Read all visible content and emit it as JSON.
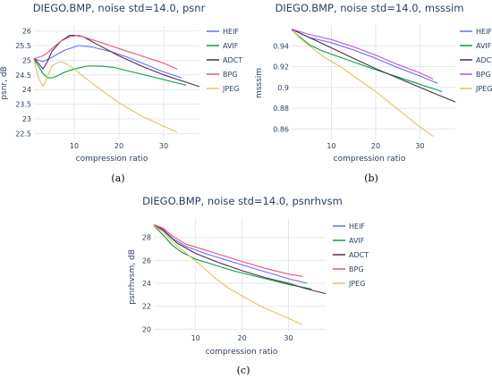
{
  "chart_data": [
    {
      "type": "line",
      "panel": "a",
      "caption": "(a)",
      "title": "DIEGO.BMP, noise std=14.0, psnr",
      "xlabel": "compression ratio",
      "ylabel": "psnr, dB",
      "xlim": [
        1,
        38
      ],
      "ylim": [
        22.3,
        26.2
      ],
      "xticks": [
        10,
        20,
        30
      ],
      "yticks": [
        22.5,
        23,
        23.5,
        24,
        24.5,
        25,
        25.5,
        26
      ],
      "grid": true,
      "legend": "right",
      "series": [
        {
          "name": "HEIF",
          "color": "#636efa",
          "x": [
            1,
            3,
            5,
            8,
            11,
            14,
            18,
            22,
            26,
            30,
            34
          ],
          "y": [
            25.05,
            24.95,
            25.1,
            25.35,
            25.5,
            25.45,
            25.3,
            25.1,
            24.85,
            24.6,
            24.4
          ]
        },
        {
          "name": "AVIF",
          "color": "#00a03c",
          "x": [
            1,
            2,
            3,
            4,
            5,
            6,
            8,
            10,
            13,
            16,
            19,
            23,
            27,
            31,
            35
          ],
          "y": [
            25.0,
            24.8,
            24.55,
            24.4,
            24.4,
            24.45,
            24.6,
            24.7,
            24.8,
            24.8,
            24.75,
            24.6,
            24.45,
            24.3,
            24.15
          ]
        },
        {
          "name": "ADCT",
          "color": "#4d2a4d",
          "x": [
            1,
            2,
            3,
            4,
            5,
            7,
            9,
            10,
            12,
            15,
            20,
            25,
            30,
            34,
            38
          ],
          "y": [
            25.05,
            24.9,
            24.7,
            24.95,
            25.3,
            25.65,
            25.85,
            25.85,
            25.8,
            25.55,
            25.15,
            24.8,
            24.5,
            24.3,
            24.1
          ]
        },
        {
          "name": "BPG",
          "color": "#e8517f",
          "x": [
            1,
            2,
            3,
            4,
            5,
            7,
            9,
            11,
            13,
            16,
            20,
            25,
            30,
            33
          ],
          "y": [
            25.05,
            25.1,
            25.15,
            25.25,
            25.4,
            25.65,
            25.8,
            25.85,
            25.75,
            25.6,
            25.4,
            25.15,
            24.9,
            24.7
          ]
        },
        {
          "name": "JPEG",
          "color": "#e5c35a",
          "x": [
            1,
            2,
            3,
            4,
            5,
            6,
            7,
            8,
            10,
            12,
            15,
            20,
            25,
            30,
            33
          ],
          "y": [
            25.0,
            24.4,
            24.1,
            24.45,
            24.8,
            24.9,
            24.95,
            24.9,
            24.7,
            24.45,
            24.1,
            23.55,
            23.1,
            22.75,
            22.55
          ]
        }
      ]
    },
    {
      "type": "line",
      "panel": "b",
      "caption": "(b)",
      "title": "DIEGO.BMP, noise std=14.0, msssim",
      "xlabel": "compression ratio",
      "ylabel": "msssim",
      "xlim": [
        1,
        38
      ],
      "ylim": [
        0.85,
        0.96
      ],
      "xticks": [
        10,
        20,
        30
      ],
      "yticks": [
        0.86,
        0.88,
        0.9,
        0.92,
        0.94
      ],
      "grid": true,
      "legend": "right",
      "series": [
        {
          "name": "HEIF",
          "color": "#636efa",
          "x": [
            1,
            5,
            10,
            15,
            20,
            25,
            30,
            34
          ],
          "y": [
            0.956,
            0.948,
            0.943,
            0.936,
            0.928,
            0.919,
            0.911,
            0.904
          ]
        },
        {
          "name": "AVIF",
          "color": "#00a03c",
          "x": [
            1,
            3,
            5,
            8,
            12,
            16,
            20,
            25,
            30,
            35
          ],
          "y": [
            0.955,
            0.948,
            0.941,
            0.935,
            0.929,
            0.923,
            0.917,
            0.91,
            0.903,
            0.896
          ]
        },
        {
          "name": "ADCT",
          "color": "#4d2a4d",
          "x": [
            1,
            4,
            8,
            12,
            16,
            20,
            25,
            30,
            34,
            38
          ],
          "y": [
            0.956,
            0.95,
            0.942,
            0.934,
            0.926,
            0.918,
            0.909,
            0.9,
            0.893,
            0.886
          ]
        },
        {
          "name": "BPG",
          "color": "#c054d3",
          "x": [
            1,
            5,
            10,
            15,
            20,
            25,
            30,
            33
          ],
          "y": [
            0.956,
            0.951,
            0.946,
            0.939,
            0.931,
            0.922,
            0.914,
            0.908
          ]
        },
        {
          "name": "JPEG",
          "color": "#e5c35a",
          "x": [
            1,
            3,
            5,
            8,
            12,
            16,
            20,
            25,
            30,
            33
          ],
          "y": [
            0.955,
            0.947,
            0.94,
            0.93,
            0.92,
            0.908,
            0.896,
            0.879,
            0.862,
            0.853
          ]
        }
      ]
    },
    {
      "type": "line",
      "panel": "c",
      "caption": "(c)",
      "title": "DIEGO.BMP, noise std=14.0, psnrhvsm",
      "xlabel": "compression ratio",
      "ylabel": "psnrhvsm, dB",
      "xlim": [
        1,
        38
      ],
      "ylim": [
        19.8,
        29.6
      ],
      "xticks": [
        10,
        20,
        30
      ],
      "yticks": [
        20,
        22,
        24,
        26,
        28
      ],
      "grid": true,
      "legend": "right",
      "series": [
        {
          "name": "HEIF",
          "color": "#636efa",
          "x": [
            1,
            3,
            5,
            8,
            12,
            16,
            20,
            25,
            30,
            34
          ],
          "y": [
            29.1,
            28.7,
            27.9,
            27.2,
            26.6,
            26.1,
            25.6,
            25.0,
            24.4,
            24.0
          ]
        },
        {
          "name": "AVIF",
          "color": "#00a03c",
          "x": [
            1,
            3,
            5,
            7,
            10,
            14,
            18,
            22,
            26,
            30,
            35
          ],
          "y": [
            29.0,
            28.2,
            27.3,
            26.7,
            26.1,
            25.6,
            25.1,
            24.7,
            24.3,
            23.9,
            23.5
          ]
        },
        {
          "name": "ADCT",
          "color": "#4d2a4d",
          "x": [
            1,
            3,
            6,
            10,
            15,
            20,
            25,
            30,
            34,
            38
          ],
          "y": [
            29.1,
            28.6,
            27.5,
            26.6,
            25.8,
            25.1,
            24.5,
            24.0,
            23.5,
            23.1
          ]
        },
        {
          "name": "BPG",
          "color": "#e8517f",
          "x": [
            1,
            3,
            5,
            8,
            12,
            16,
            20,
            25,
            30,
            33
          ],
          "y": [
            29.1,
            28.8,
            28.1,
            27.4,
            26.9,
            26.4,
            25.9,
            25.3,
            24.8,
            24.6
          ]
        },
        {
          "name": "JPEG",
          "color": "#e5c35a",
          "x": [
            1,
            3,
            5,
            8,
            11,
            14,
            17,
            20,
            24,
            28,
            33
          ],
          "y": [
            29.0,
            28.5,
            27.6,
            26.6,
            25.6,
            24.5,
            23.6,
            22.9,
            22.0,
            21.3,
            20.4
          ]
        }
      ]
    }
  ]
}
